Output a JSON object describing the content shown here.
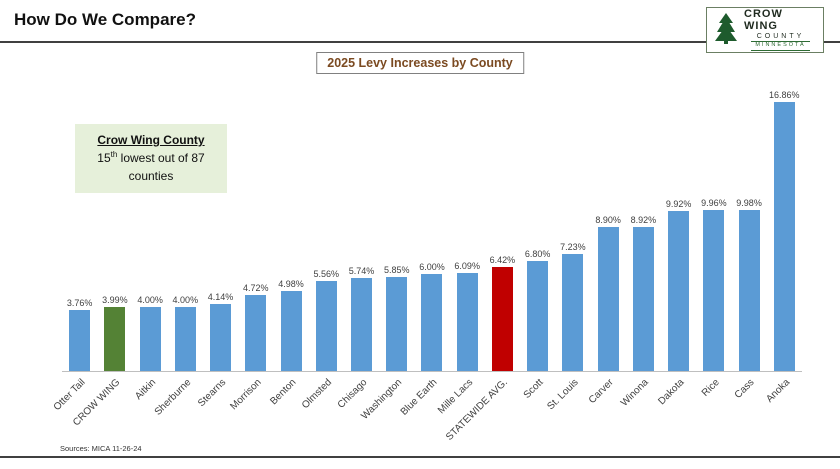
{
  "header": {
    "title": "How Do We Compare?"
  },
  "logo": {
    "line1": "CROW WING",
    "line2": "COUNTY",
    "line3": "MINNESOTA"
  },
  "callout": {
    "title": "Crow Wing County",
    "rank": "15",
    "rank_suffix": "th",
    "rest": " lowest out of 87",
    "line2": "counties"
  },
  "footer": {
    "sources": "Sources:  MICA 11-26-24"
  },
  "chart_data": {
    "type": "bar",
    "title": "2025 Levy Increases by County",
    "xlabel": "",
    "ylabel": "",
    "ylim": [
      0,
      17
    ],
    "grid": false,
    "categories": [
      "Otter Tail",
      "CROW WING",
      "Aitkin",
      "Sherburne",
      "Stearns",
      "Morrison",
      "Benton",
      "Olmsted",
      "Chisago",
      "Washington",
      "Blue Earth",
      "Mille Lacs",
      "STATEWIDE AVG.",
      "Scott",
      "St. Louis",
      "Carver",
      "Winona",
      "Dakota",
      "Rice",
      "Cass",
      "Anoka"
    ],
    "values": [
      3.76,
      3.99,
      4.0,
      4.0,
      4.14,
      4.72,
      4.98,
      5.56,
      5.74,
      5.85,
      6.0,
      6.09,
      6.42,
      6.8,
      7.23,
      8.9,
      8.92,
      9.92,
      9.96,
      9.98,
      16.86
    ],
    "labels": [
      "3.76%",
      "3.99%",
      "4.00%",
      "4.00%",
      "4.14%",
      "4.72%",
      "4.98%",
      "5.56%",
      "5.74%",
      "5.85%",
      "6.00%",
      "6.09%",
      "6.42%",
      "6.80%",
      "7.23%",
      "8.90%",
      "8.92%",
      "9.92%",
      "9.96%",
      "9.98%",
      "16.86%"
    ],
    "color_default": "#5b9bd5",
    "highlights": {
      "CROW WING": "#548235",
      "STATEWIDE AVG.": "#c00000"
    },
    "axis_line_color": "#bfbfbf"
  }
}
